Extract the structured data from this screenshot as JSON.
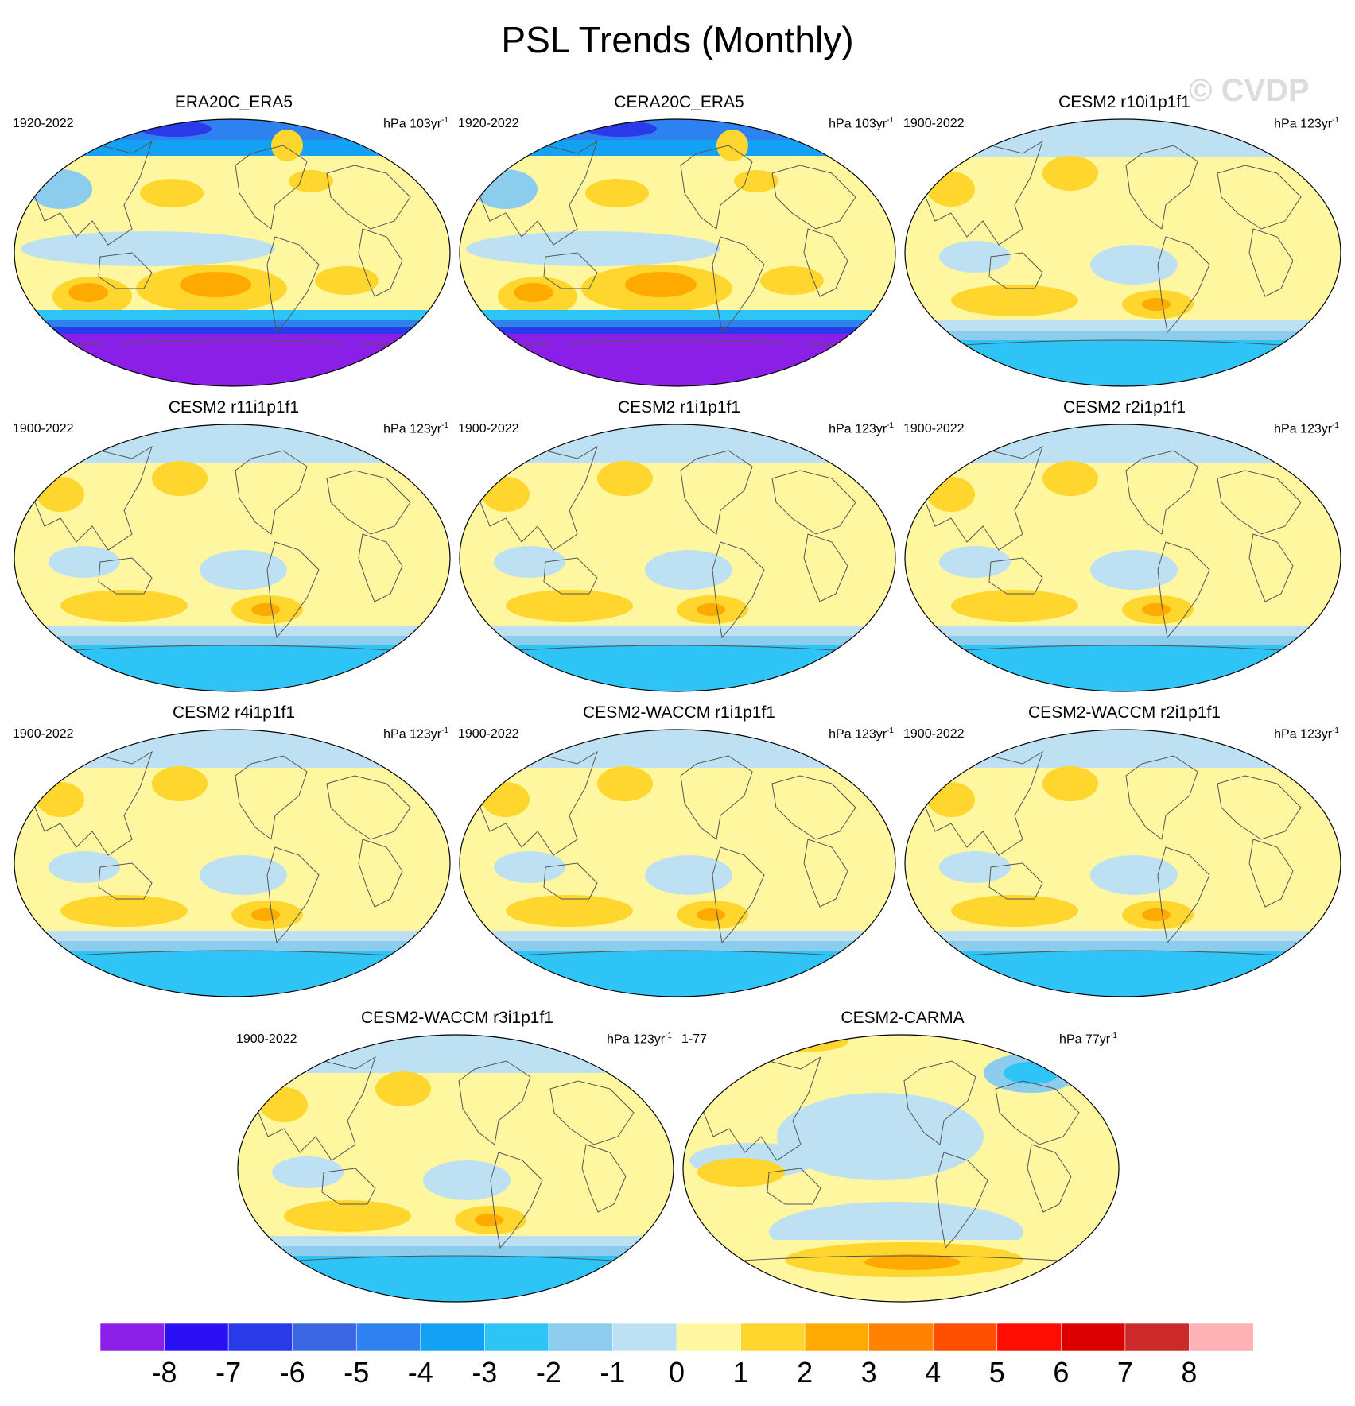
{
  "title": "PSL Trends (Monthly)",
  "watermark": "© CVDP",
  "panels": [
    {
      "title": "ERA20C_ERA5",
      "years": "1920-2022",
      "units": "hPa 103yr",
      "units_sup": "-1",
      "pattern": "obs"
    },
    {
      "title": "CERA20C_ERA5",
      "years": "1920-2022",
      "units": "hPa 103yr",
      "units_sup": "-1",
      "pattern": "obs"
    },
    {
      "title": "CESM2 r10i1p1f1",
      "years": "1900-2022",
      "units": "hPa 123yr",
      "units_sup": "-1",
      "pattern": "model"
    },
    {
      "title": "CESM2 r11i1p1f1",
      "years": "1900-2022",
      "units": "hPa 123yr",
      "units_sup": "-1",
      "pattern": "model"
    },
    {
      "title": "CESM2 r1i1p1f1",
      "years": "1900-2022",
      "units": "hPa 123yr",
      "units_sup": "-1",
      "pattern": "model"
    },
    {
      "title": "CESM2 r2i1p1f1",
      "years": "1900-2022",
      "units": "hPa 123yr",
      "units_sup": "-1",
      "pattern": "model"
    },
    {
      "title": "CESM2 r4i1p1f1",
      "years": "1900-2022",
      "units": "hPa 123yr",
      "units_sup": "-1",
      "pattern": "model"
    },
    {
      "title": "CESM2-WACCM r1i1p1f1",
      "years": "1900-2022",
      "units": "hPa 123yr",
      "units_sup": "-1",
      "pattern": "model"
    },
    {
      "title": "CESM2-WACCM r2i1p1f1",
      "years": "1900-2022",
      "units": "hPa 123yr",
      "units_sup": "-1",
      "pattern": "model"
    },
    {
      "title": "CESM2-WACCM r3i1p1f1",
      "years": "1900-2022",
      "units": "hPa 123yr",
      "units_sup": "-1",
      "pattern": "model"
    },
    {
      "title": "CESM2-CARMA",
      "years": "1-77",
      "units": "hPa 77yr",
      "units_sup": "-1",
      "pattern": "carma"
    }
  ],
  "colorbar": {
    "labels": [
      "-8",
      "-7",
      "-6",
      "-5",
      "-4",
      "-3",
      "-2",
      "-1",
      "0",
      "1",
      "2",
      "3",
      "4",
      "5",
      "6",
      "7",
      "8"
    ],
    "colors": [
      "#8b1fe8",
      "#2c10f5",
      "#2a3ae8",
      "#3a66e2",
      "#2d82f0",
      "#13a2f3",
      "#2ec4f6",
      "#8ccdee",
      "#bde1f2",
      "#fff7a0",
      "#ffd62e",
      "#ffaa00",
      "#ff8200",
      "#ff4f00",
      "#ff0d00",
      "#dd0000",
      "#cc2a2a",
      "#ffb3b6"
    ]
  }
}
